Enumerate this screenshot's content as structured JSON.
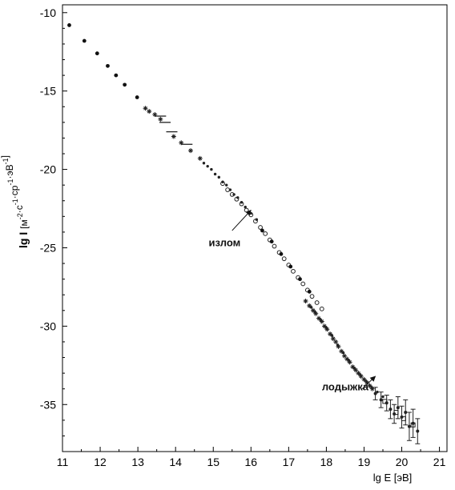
{
  "chart_data": {
    "type": "scatter",
    "xlabel": "lg E [эВ]",
    "ylabel": {
      "main": "lg I",
      "unit_parts": [
        {
          "text": "[м",
          "sup": "-2"
        },
        {
          "text": "·c",
          "sup": "-1"
        },
        {
          "text": "·cp",
          "sup": "-1"
        },
        {
          "text": "·эВ",
          "sup": "-1"
        },
        {
          "text": "]",
          "sup": ""
        }
      ]
    },
    "xlim": [
      11,
      21.2
    ],
    "ylim": [
      -38,
      -9.5
    ],
    "xticks": [
      "11",
      "12",
      "13",
      "14",
      "15",
      "16",
      "17",
      "18",
      "19",
      "20",
      "21"
    ],
    "yticks": [
      "-10",
      "-15",
      "-20",
      "-25",
      "-30",
      "-35"
    ],
    "grid": false,
    "series": [
      {
        "marker": "filled-circle",
        "points": [
          [
            11.18,
            -10.8
          ],
          [
            11.58,
            -11.8
          ],
          [
            11.92,
            -12.6
          ],
          [
            12.2,
            -13.4
          ],
          [
            12.42,
            -14.0
          ],
          [
            12.65,
            -14.6
          ],
          [
            12.98,
            -15.4
          ]
        ]
      },
      {
        "marker": "star",
        "points": [
          [
            13.2,
            -16.1
          ],
          [
            13.3,
            -16.3
          ],
          [
            13.45,
            -16.5
          ],
          [
            13.6,
            -16.8
          ],
          [
            13.95,
            -17.9
          ],
          [
            14.15,
            -18.3
          ],
          [
            14.4,
            -18.8
          ],
          [
            14.65,
            -19.3
          ]
        ]
      },
      {
        "marker": "dash",
        "points": [
          [
            13.6,
            -16.6
          ],
          [
            13.72,
            -17.0
          ],
          [
            13.9,
            -17.6
          ],
          [
            14.3,
            -18.4
          ]
        ]
      },
      {
        "marker": "small-dot",
        "points": [
          [
            14.75,
            -19.6
          ],
          [
            14.85,
            -19.8
          ],
          [
            14.95,
            -20.0
          ],
          [
            15.05,
            -20.3
          ],
          [
            15.15,
            -20.5
          ],
          [
            15.25,
            -20.8
          ],
          [
            15.35,
            -21.0
          ],
          [
            15.45,
            -21.3
          ],
          [
            15.55,
            -21.6
          ],
          [
            15.65,
            -21.8
          ],
          [
            15.75,
            -22.1
          ],
          [
            15.85,
            -22.4
          ],
          [
            16.0,
            -22.8
          ],
          [
            16.15,
            -23.2
          ]
        ]
      },
      {
        "marker": "open-circle",
        "points": [
          [
            15.25,
            -20.9
          ],
          [
            15.38,
            -21.3
          ],
          [
            15.5,
            -21.6
          ],
          [
            15.62,
            -21.9
          ],
          [
            15.75,
            -22.2
          ],
          [
            15.88,
            -22.6
          ],
          [
            16.0,
            -22.9
          ],
          [
            16.12,
            -23.3
          ],
          [
            16.25,
            -23.7
          ],
          [
            16.38,
            -24.1
          ],
          [
            16.5,
            -24.5
          ],
          [
            16.62,
            -24.9
          ],
          [
            16.75,
            -25.3
          ],
          [
            16.88,
            -25.7
          ],
          [
            17.0,
            -26.1
          ],
          [
            17.12,
            -26.5
          ],
          [
            17.25,
            -26.9
          ],
          [
            17.38,
            -27.3
          ],
          [
            17.5,
            -27.7
          ],
          [
            17.62,
            -28.1
          ],
          [
            17.75,
            -28.5
          ],
          [
            17.88,
            -28.9
          ]
        ]
      },
      {
        "marker": "filled-circle",
        "points": [
          [
            16.3,
            -23.9
          ],
          [
            16.55,
            -24.6
          ],
          [
            16.8,
            -25.4
          ],
          [
            17.05,
            -26.2
          ],
          [
            17.3,
            -27.0
          ],
          [
            17.55,
            -27.8
          ]
        ]
      },
      {
        "marker": "star",
        "points": [
          [
            17.45,
            -28.4
          ],
          [
            17.55,
            -28.7
          ],
          [
            17.65,
            -29.0
          ],
          [
            17.72,
            -29.2
          ],
          [
            17.8,
            -29.5
          ],
          [
            17.88,
            -29.7
          ],
          [
            17.95,
            -30.0
          ],
          [
            18.02,
            -30.2
          ],
          [
            18.1,
            -30.5
          ],
          [
            18.18,
            -30.8
          ],
          [
            18.25,
            -31.0
          ],
          [
            18.32,
            -31.3
          ],
          [
            18.4,
            -31.6
          ],
          [
            18.48,
            -31.9
          ],
          [
            18.55,
            -32.1
          ],
          [
            18.62,
            -32.3
          ],
          [
            18.7,
            -32.6
          ],
          [
            18.78,
            -32.8
          ],
          [
            18.85,
            -33.0
          ],
          [
            18.92,
            -33.2
          ],
          [
            19.0,
            -33.4
          ],
          [
            19.08,
            -33.6
          ],
          [
            19.15,
            -33.8
          ],
          [
            19.22,
            -34.0
          ]
        ]
      },
      {
        "marker": "small-dot",
        "points": [
          [
            17.6,
            -28.8
          ],
          [
            17.7,
            -29.1
          ],
          [
            17.85,
            -29.6
          ],
          [
            18.0,
            -30.1
          ],
          [
            18.15,
            -30.6
          ],
          [
            18.3,
            -31.2
          ],
          [
            18.45,
            -31.7
          ],
          [
            18.6,
            -32.2
          ],
          [
            18.75,
            -32.7
          ],
          [
            18.9,
            -33.1
          ],
          [
            19.05,
            -33.5
          ],
          [
            19.2,
            -33.9
          ],
          [
            19.35,
            -34.2
          ],
          [
            19.5,
            -34.5
          ]
        ]
      },
      {
        "marker": "errorbar",
        "points": [
          [
            19.3,
            -34.3,
            0.4
          ],
          [
            19.45,
            -34.7,
            0.5
          ],
          [
            19.6,
            -34.9,
            0.5
          ],
          [
            19.7,
            -35.3,
            0.6
          ],
          [
            19.8,
            -35.6,
            0.6
          ],
          [
            19.9,
            -35.2,
            0.7
          ],
          [
            20.0,
            -35.8,
            0.7
          ],
          [
            20.1,
            -35.5,
            0.8
          ],
          [
            20.2,
            -36.4,
            0.9
          ],
          [
            20.3,
            -36.2,
            0.9
          ],
          [
            20.42,
            -36.7,
            0.8
          ]
        ]
      },
      {
        "marker": "open-square",
        "points": [
          [
            19.55,
            -34.8
          ],
          [
            19.85,
            -35.5
          ],
          [
            20.05,
            -35.9
          ],
          [
            20.3,
            -36.3
          ]
        ]
      }
    ],
    "annotations": [
      {
        "text": "излом",
        "label_at": [
          15.3,
          -24.9
        ],
        "arrow_from": [
          15.5,
          -23.9
        ],
        "arrow_to": [
          16.0,
          -22.6
        ]
      },
      {
        "text": "лодыжка",
        "label_at": [
          18.5,
          -34.1
        ],
        "arrow_from": [
          18.95,
          -34.0
        ],
        "arrow_to": [
          19.3,
          -33.2
        ]
      }
    ]
  }
}
